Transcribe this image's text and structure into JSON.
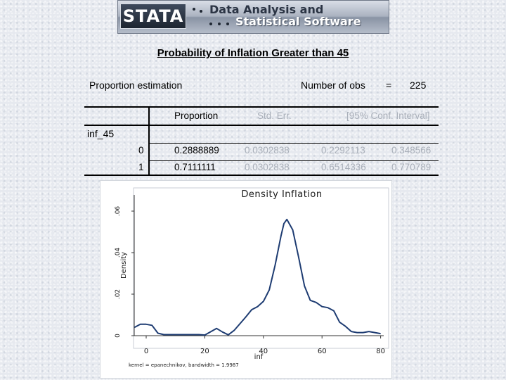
{
  "banner": {
    "logo_text": "STATA",
    "line1": "Data Analysis and",
    "line2": "Statistical Software"
  },
  "title": "Probability of Inflation Greater than 45",
  "estimation": {
    "label": "Proportion estimation",
    "nobs_label": "Number of obs",
    "nobs_eq": "=",
    "nobs_value": "225"
  },
  "table": {
    "headers": {
      "proportion": "Proportion",
      "std_err": "Std. Err.",
      "ci": "[95% Conf. Interval]"
    },
    "variable": "inf_45",
    "rows": [
      {
        "level": "0",
        "proportion": "0.2888889",
        "std_err": "0.0302838",
        "ci_low": "0.2292113",
        "ci_high": "0.348566"
      },
      {
        "level": "1",
        "proportion": "0.7111111",
        "std_err": "0.0302838",
        "ci_low": "0.6514336",
        "ci_high": "0.770789"
      }
    ]
  },
  "chart_data": {
    "type": "line",
    "title": "Density Inflation",
    "xlabel": "inf",
    "ylabel": "Density",
    "note": "kernel = epanechnikov, bandwidth = 1.9987",
    "xlim": [
      -2,
      80
    ],
    "ylim": [
      0,
      0.065
    ],
    "xticks": [
      "0",
      "20",
      "40",
      "60",
      "80"
    ],
    "yticks": [
      "0",
      ".02",
      ".04",
      ".06"
    ],
    "line_color": "#1e3c72",
    "series": [
      {
        "x": [
          -4,
          -2,
          0,
          2,
          4,
          6,
          10,
          14,
          18,
          20,
          24,
          26,
          28,
          30,
          34,
          36,
          38,
          40,
          42,
          44,
          46,
          47,
          48,
          50,
          52,
          54,
          56,
          58,
          60,
          62,
          64,
          66,
          68,
          70,
          72,
          74,
          76,
          78,
          80
        ],
        "y": [
          0.004,
          0.0055,
          0.0055,
          0.005,
          0.0012,
          0.0005,
          0.0005,
          0.0005,
          0.0005,
          0.0003,
          0.0035,
          0.0018,
          0.0004,
          0.0025,
          0.009,
          0.0125,
          0.014,
          0.0165,
          0.022,
          0.034,
          0.048,
          0.054,
          0.056,
          0.051,
          0.038,
          0.024,
          0.017,
          0.016,
          0.014,
          0.0135,
          0.012,
          0.0065,
          0.0045,
          0.002,
          0.0015,
          0.0015,
          0.002,
          0.0015,
          0.001
        ]
      }
    ]
  }
}
